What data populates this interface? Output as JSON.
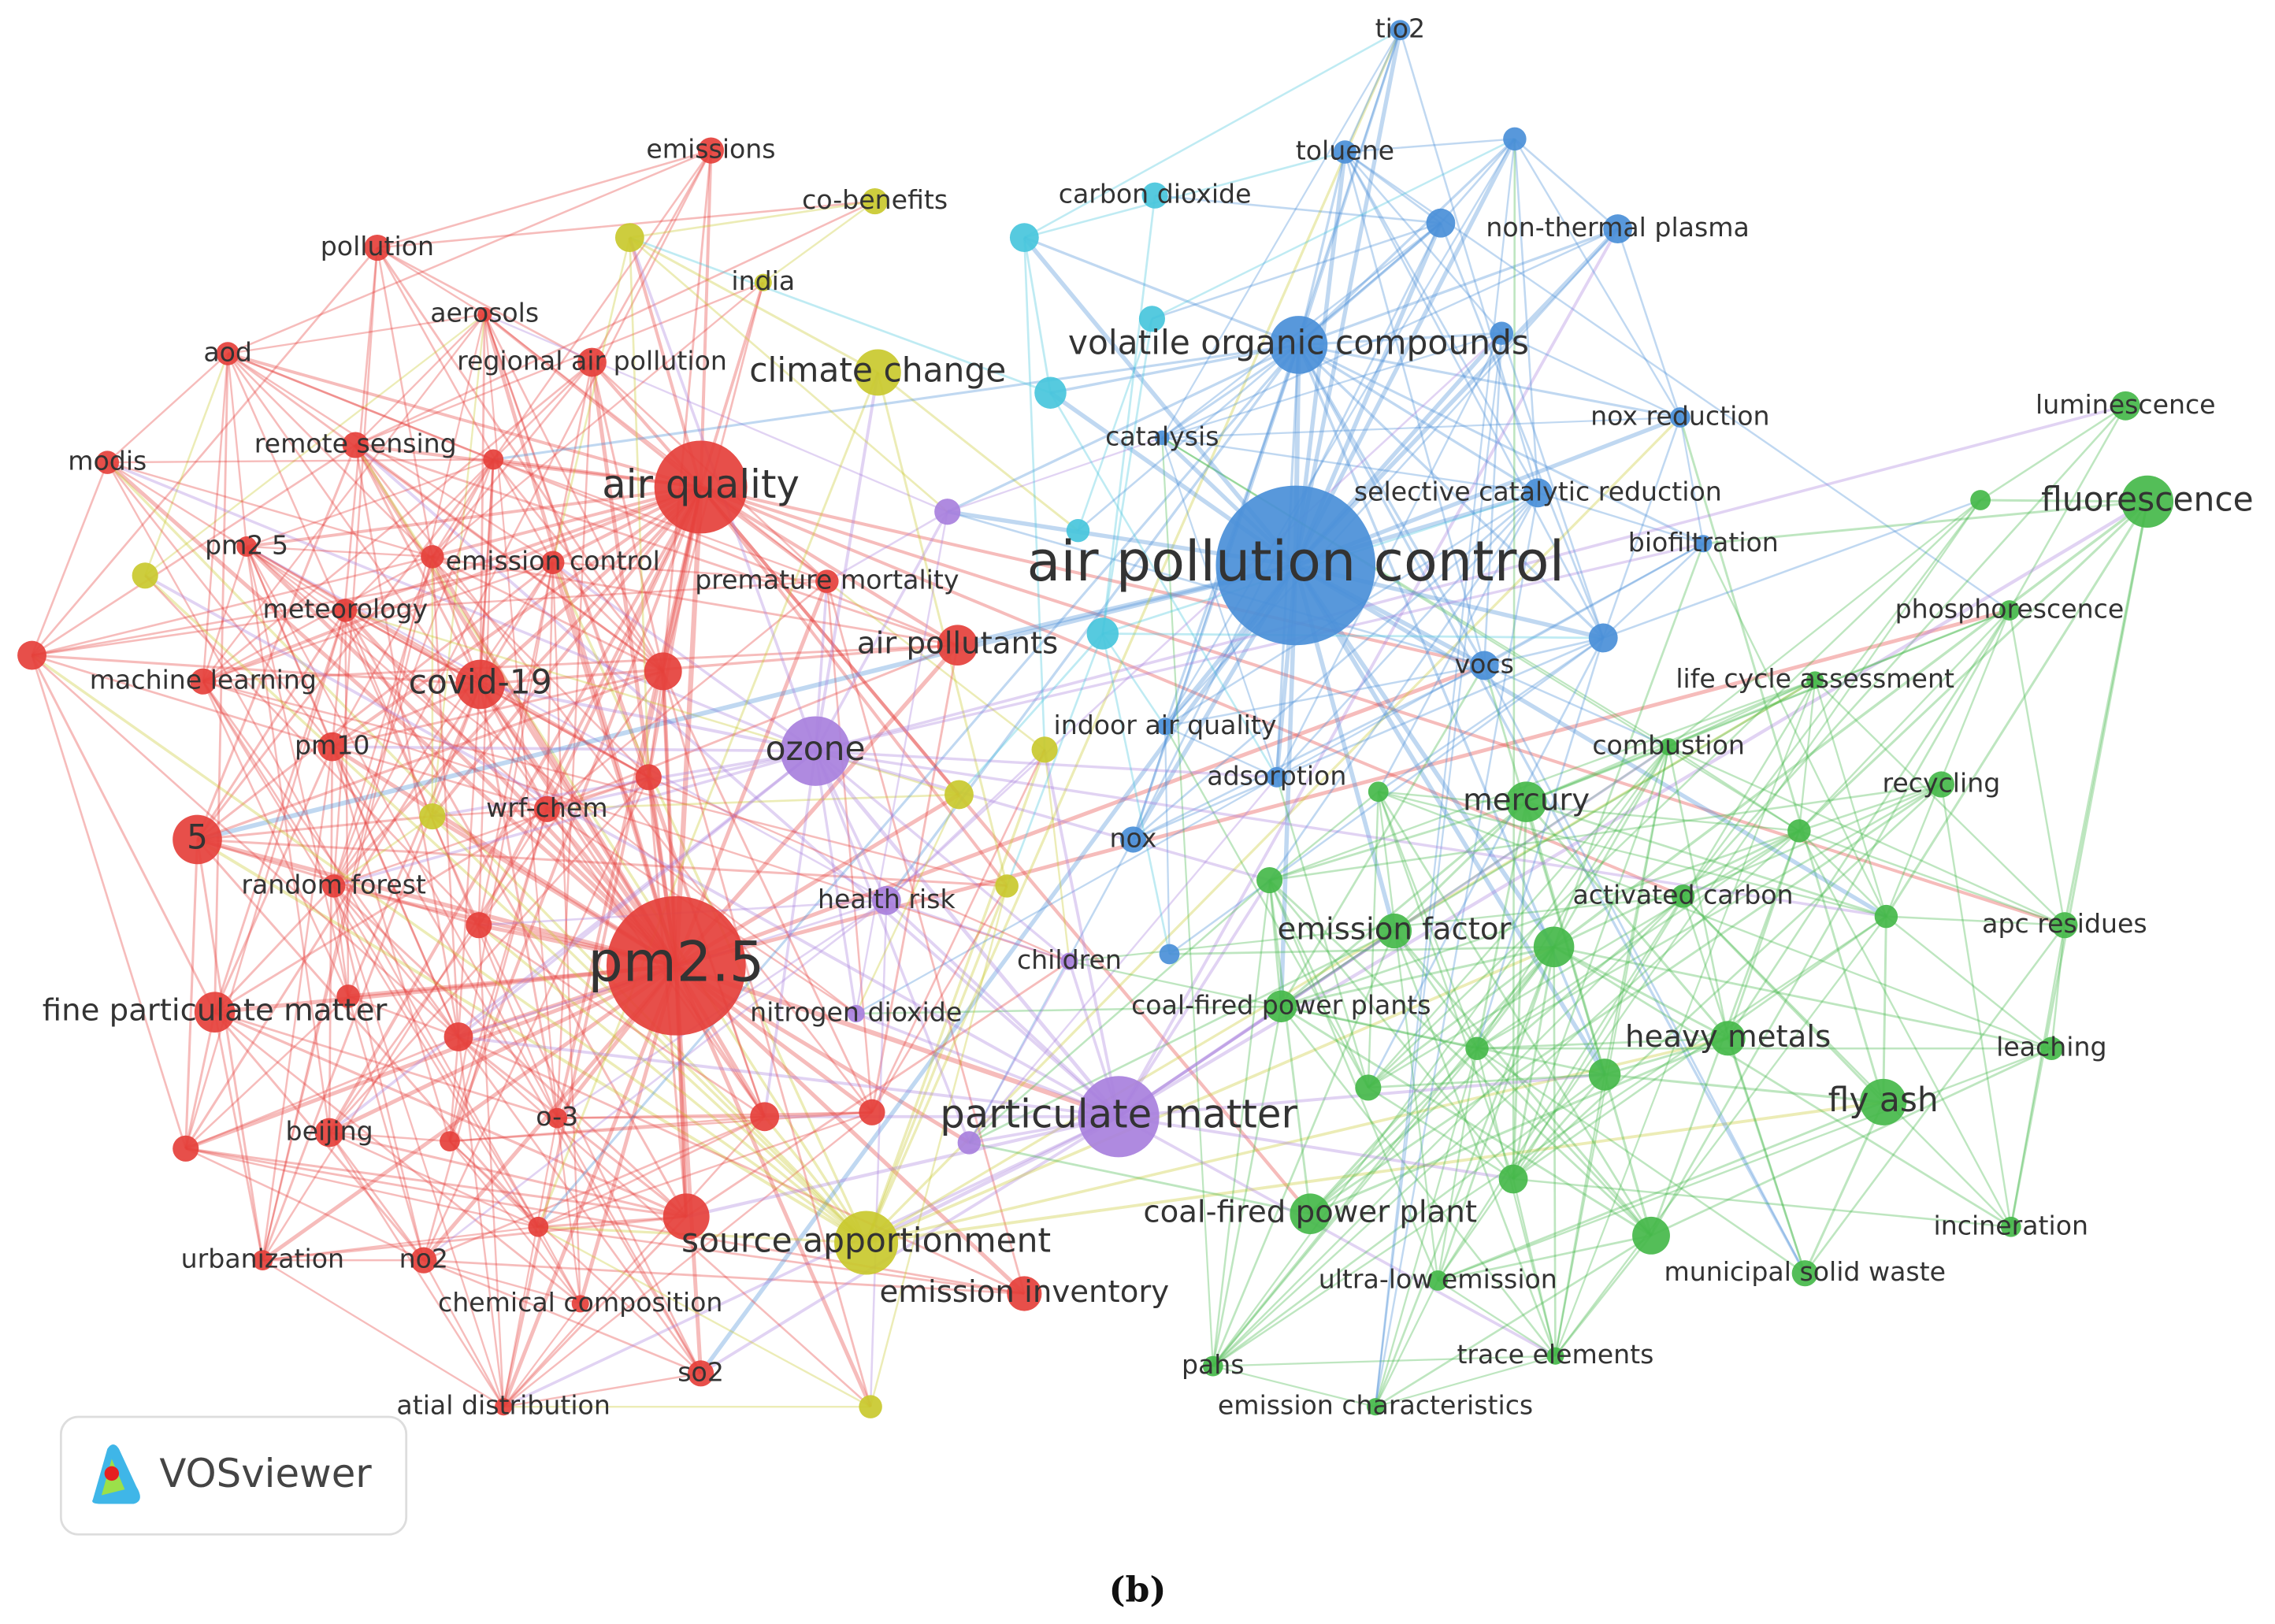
{
  "nodes": [
    {
      "label": "emissions"
    },
    {
      "label": "pollution"
    },
    {
      "label": "aerosols"
    },
    {
      "label": "aod"
    },
    {
      "label": "regional air pollution"
    },
    {
      "label": "modis"
    },
    {
      "label": "remote sensing"
    },
    {
      "label": "pm2 5"
    },
    {
      "label": "emission control"
    },
    {
      "label": "air quality"
    },
    {
      "label": "premature mortality"
    },
    {
      "label": "meteorology"
    },
    {
      "label": "machine learning"
    },
    {
      "label": "covid-19"
    },
    {
      "label": "air pollutants"
    },
    {
      "label": "pm10"
    },
    {
      "label": "wrf-chem"
    },
    {
      "label": "5"
    },
    {
      "label": "random forest"
    },
    {
      "label": "pm2.5"
    },
    {
      "label": "fine particulate matter"
    },
    {
      "label": "beijing"
    },
    {
      "label": "o-3"
    },
    {
      "label": "urbanization"
    },
    {
      "label": "no2"
    },
    {
      "label": "chemical composition"
    },
    {
      "label": "emission inventory"
    },
    {
      "label": "so2"
    },
    {
      "label": "atial distribution"
    },
    {
      "label": "co-benefits"
    },
    {
      "label": "india"
    },
    {
      "label": "climate change"
    },
    {
      "label": "source apportionment"
    },
    {
      "label": "carbon dioxide"
    },
    {
      "label": "tio2"
    },
    {
      "label": "toluene"
    },
    {
      "label": "non-thermal plasma"
    },
    {
      "label": "volatile organic compounds"
    },
    {
      "label": "nox reduction"
    },
    {
      "label": "catalysis"
    },
    {
      "label": "selective catalytic reduction"
    },
    {
      "label": "air pollution control"
    },
    {
      "label": "biofiltration"
    },
    {
      "label": "vocs"
    },
    {
      "label": "indoor air quality"
    },
    {
      "label": "adsorption"
    },
    {
      "label": "nox"
    },
    {
      "label": "luminescence"
    },
    {
      "label": "fluorescence"
    },
    {
      "label": "phosphorescence"
    },
    {
      "label": "life cycle assessment"
    },
    {
      "label": "combustion"
    },
    {
      "label": "mercury"
    },
    {
      "label": "recycling"
    },
    {
      "label": "activated carbon"
    },
    {
      "label": "emission factor"
    },
    {
      "label": "apc residues"
    },
    {
      "label": "coal-fired power plants"
    },
    {
      "label": "heavy metals"
    },
    {
      "label": "leaching"
    },
    {
      "label": "fly ash"
    },
    {
      "label": "coal-fired power plant"
    },
    {
      "label": "incineration"
    },
    {
      "label": "municipal solid waste"
    },
    {
      "label": "ultra-low emission"
    },
    {
      "label": "trace elements"
    },
    {
      "label": "pahs"
    },
    {
      "label": "emission characteristics"
    },
    {
      "label": "ozone"
    },
    {
      "label": "health risk"
    },
    {
      "label": "children"
    },
    {
      "label": "nitrogen dioxide"
    },
    {
      "label": "particulate matter"
    }
  ],
  "logo": "VOSviewer",
  "caption": "(b)"
}
